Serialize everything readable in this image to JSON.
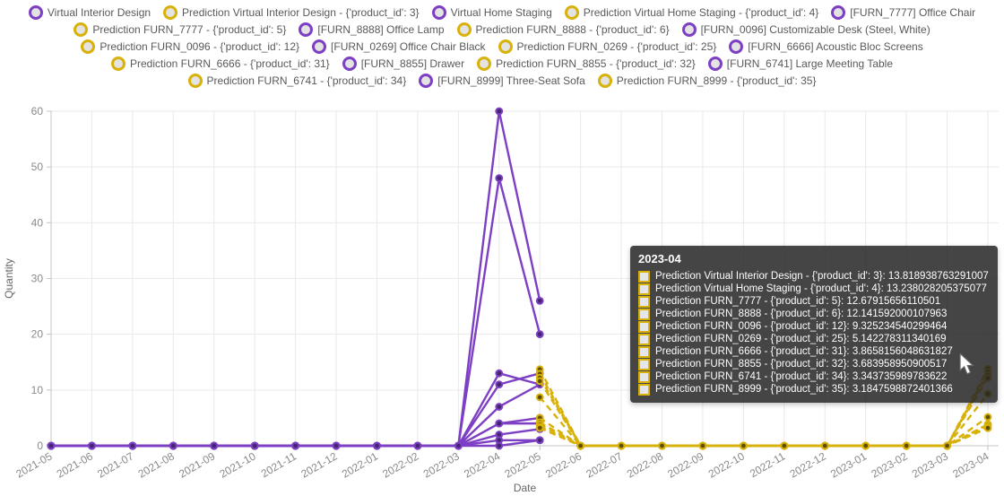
{
  "colors": {
    "actual": "#7d3fc4",
    "actual_marker_center": "#42266e",
    "prediction": "#d8b109",
    "prediction_marker_center": "#5f4f03",
    "legend_marker_fill": "#e3e3e3",
    "grid": "#e9e9e9",
    "axis": "#c4c4c4",
    "axis_title_text": "#666666",
    "tick_text": "#8a8a8a",
    "legend_text": "#595959",
    "tooltip_bg": "rgba(38,38,38,0.86)"
  },
  "legend": {
    "rows": [
      [
        {
          "label": "Virtual Interior Design",
          "kind": "actual"
        },
        {
          "label": "Prediction Virtual Interior Design - {'product_id': 3}",
          "kind": "prediction"
        },
        {
          "label": "Virtual Home Staging",
          "kind": "actual"
        },
        {
          "label": "Prediction Virtual Home Staging - {'product_id': 4}",
          "kind": "prediction"
        },
        {
          "label": "[FURN_7777] Office Chair",
          "kind": "actual"
        }
      ],
      [
        {
          "label": "Prediction FURN_7777 - {'product_id': 5}",
          "kind": "prediction"
        },
        {
          "label": "[FURN_8888] Office Lamp",
          "kind": "actual"
        },
        {
          "label": "Prediction FURN_8888 - {'product_id': 6}",
          "kind": "prediction"
        },
        {
          "label": "[FURN_0096] Customizable Desk (Steel, White)",
          "kind": "actual"
        }
      ],
      [
        {
          "label": "Prediction FURN_0096 - {'product_id': 12}",
          "kind": "prediction"
        },
        {
          "label": "[FURN_0269] Office Chair Black",
          "kind": "actual"
        },
        {
          "label": "Prediction FURN_0269 - {'product_id': 25}",
          "kind": "prediction"
        },
        {
          "label": "[FURN_6666] Acoustic Bloc Screens",
          "kind": "actual"
        }
      ],
      [
        {
          "label": "Prediction FURN_6666 - {'product_id': 31}",
          "kind": "prediction"
        },
        {
          "label": "[FURN_8855] Drawer",
          "kind": "actual"
        },
        {
          "label": "Prediction FURN_8855 - {'product_id': 32}",
          "kind": "prediction"
        },
        {
          "label": "[FURN_6741] Large Meeting Table",
          "kind": "actual"
        }
      ],
      [
        {
          "label": "Prediction FURN_6741 - {'product_id': 34}",
          "kind": "prediction"
        },
        {
          "label": "[FURN_8999] Three-Seat Sofa",
          "kind": "actual"
        },
        {
          "label": "Prediction FURN_8999 - {'product_id': 35}",
          "kind": "prediction"
        }
      ]
    ]
  },
  "axes": {
    "y_title": "Quantity",
    "x_title": "Date",
    "y_ticks": [
      0,
      10,
      20,
      30,
      40,
      50,
      60
    ]
  },
  "tooltip": {
    "title": "2023-04",
    "rows": [
      {
        "label": "Prediction Virtual Interior Design - {'product_id': 3}",
        "value": "13.818938763291007"
      },
      {
        "label": "Prediction Virtual Home Staging - {'product_id': 4}",
        "value": "13.238028205375077"
      },
      {
        "label": "Prediction FURN_7777 - {'product_id': 5}",
        "value": "12.67915656110501"
      },
      {
        "label": "Prediction FURN_8888 - {'product_id': 6}",
        "value": "12.141592000107963"
      },
      {
        "label": "Prediction FURN_0096 - {'product_id': 12}",
        "value": "9.325234540299464"
      },
      {
        "label": "Prediction FURN_0269 - {'product_id': 25}",
        "value": "5.142278311340169"
      },
      {
        "label": "Prediction FURN_6666 - {'product_id': 31}",
        "value": "3.8658156048631827"
      },
      {
        "label": "Prediction FURN_8855 - {'product_id': 32}",
        "value": "3.683958950900517"
      },
      {
        "label": "Prediction FURN_6741 - {'product_id': 34}",
        "value": "3.343735989783622"
      },
      {
        "label": "Prediction FURN_8999 - {'product_id': 35}",
        "value": "3.1847598872401366"
      }
    ]
  },
  "chart_data": {
    "type": "line",
    "x": [
      "2021-05",
      "2021-06",
      "2021-07",
      "2021-08",
      "2021-09",
      "2021-10",
      "2021-11",
      "2021-12",
      "2022-01",
      "2022-02",
      "2022-03",
      "2022-04",
      "2022-05",
      "2022-06",
      "2022-07",
      "2022-08",
      "2022-09",
      "2022-10",
      "2022-11",
      "2022-12",
      "2023-01",
      "2023-02",
      "2023-03",
      "2023-04"
    ],
    "xlabel": "Date",
    "ylabel": "Quantity",
    "ylim": [
      0,
      60
    ],
    "grid": true,
    "legend_position": "top",
    "series": [
      {
        "name": "Virtual Interior Design",
        "role": "actual",
        "start_index": 0,
        "values": [
          0,
          0,
          0,
          0,
          0,
          0,
          0,
          0,
          0,
          0,
          0,
          60,
          26
        ]
      },
      {
        "name": "Virtual Home Staging",
        "role": "actual",
        "start_index": 0,
        "values": [
          0,
          0,
          0,
          0,
          0,
          0,
          0,
          0,
          0,
          0,
          0,
          48,
          20
        ]
      },
      {
        "name": "[FURN_7777] Office Chair",
        "role": "actual",
        "start_index": 0,
        "values": [
          0,
          0,
          0,
          0,
          0,
          0,
          0,
          0,
          0,
          0,
          0,
          13,
          11
        ]
      },
      {
        "name": "[FURN_8888] Office Lamp",
        "role": "actual",
        "start_index": 0,
        "values": [
          0,
          0,
          0,
          0,
          0,
          0,
          0,
          0,
          0,
          0,
          0,
          11,
          13
        ]
      },
      {
        "name": "[FURN_0096] Customizable Desk (Steel, White)",
        "role": "actual",
        "start_index": 0,
        "values": [
          0,
          0,
          0,
          0,
          0,
          0,
          0,
          0,
          0,
          0,
          0,
          7,
          11
        ]
      },
      {
        "name": "[FURN_0269] Office Chair Black",
        "role": "actual",
        "start_index": 0,
        "values": [
          0,
          0,
          0,
          0,
          0,
          0,
          0,
          0,
          0,
          0,
          0,
          4,
          5
        ]
      },
      {
        "name": "[FURN_6666] Acoustic Bloc Screens",
        "role": "actual",
        "start_index": 0,
        "values": [
          0,
          0,
          0,
          0,
          0,
          0,
          0,
          0,
          0,
          0,
          0,
          4,
          4
        ]
      },
      {
        "name": "[FURN_8855] Drawer",
        "role": "actual",
        "start_index": 0,
        "values": [
          0,
          0,
          0,
          0,
          0,
          0,
          0,
          0,
          0,
          0,
          0,
          2,
          3
        ]
      },
      {
        "name": "[FURN_6741] Large Meeting Table",
        "role": "actual",
        "start_index": 0,
        "values": [
          0,
          0,
          0,
          0,
          0,
          0,
          0,
          0,
          0,
          0,
          0,
          1,
          1
        ]
      },
      {
        "name": "[FURN_8999] Three-Seat Sofa",
        "role": "actual",
        "start_index": 0,
        "values": [
          0,
          0,
          0,
          0,
          0,
          0,
          0,
          0,
          0,
          0,
          0,
          0,
          1
        ]
      },
      {
        "name": "Prediction Virtual Interior Design - {'product_id': 3}",
        "role": "prediction",
        "start_index": 12,
        "values": [
          13.7,
          0,
          0,
          0,
          0,
          0,
          0,
          0,
          0,
          0,
          0,
          13.818938763291007
        ]
      },
      {
        "name": "Prediction Virtual Home Staging - {'product_id': 4}",
        "role": "prediction",
        "start_index": 12,
        "values": [
          12.9,
          0,
          0,
          0,
          0,
          0,
          0,
          0,
          0,
          0,
          0,
          13.238028205375077
        ]
      },
      {
        "name": "Prediction FURN_7777 - {'product_id': 5}",
        "role": "prediction",
        "start_index": 12,
        "values": [
          12.2,
          0,
          0,
          0,
          0,
          0,
          0,
          0,
          0,
          0,
          0,
          12.67915656110501
        ]
      },
      {
        "name": "Prediction FURN_8888 - {'product_id': 6}",
        "role": "prediction",
        "start_index": 12,
        "values": [
          11.6,
          0,
          0,
          0,
          0,
          0,
          0,
          0,
          0,
          0,
          0,
          12.141592000107963
        ]
      },
      {
        "name": "Prediction FURN_0096 - {'product_id': 12}",
        "role": "prediction",
        "start_index": 12,
        "values": [
          8.7,
          0,
          0,
          0,
          0,
          0,
          0,
          0,
          0,
          0,
          0,
          9.325234540299464
        ]
      },
      {
        "name": "Prediction FURN_0269 - {'product_id': 25}",
        "role": "prediction",
        "start_index": 12,
        "values": [
          5.0,
          0,
          0,
          0,
          0,
          0,
          0,
          0,
          0,
          0,
          0,
          5.142278311340169
        ]
      },
      {
        "name": "Prediction FURN_6666 - {'product_id': 31}",
        "role": "prediction",
        "start_index": 12,
        "values": [
          4.2,
          0,
          0,
          0,
          0,
          0,
          0,
          0,
          0,
          0,
          0,
          3.8658156048631827
        ]
      },
      {
        "name": "Prediction FURN_8855 - {'product_id': 32}",
        "role": "prediction",
        "start_index": 12,
        "values": [
          3.8,
          0,
          0,
          0,
          0,
          0,
          0,
          0,
          0,
          0,
          0,
          3.683958950900517
        ]
      },
      {
        "name": "Prediction FURN_6741 - {'product_id': 34}",
        "role": "prediction",
        "start_index": 12,
        "values": [
          3.4,
          0,
          0,
          0,
          0,
          0,
          0,
          0,
          0,
          0,
          0,
          3.343735989783622
        ]
      },
      {
        "name": "Prediction FURN_8999 - {'product_id': 35}",
        "role": "prediction",
        "start_index": 12,
        "values": [
          3.2,
          0,
          0,
          0,
          0,
          0,
          0,
          0,
          0,
          0,
          0,
          3.1847598872401366
        ]
      }
    ]
  }
}
